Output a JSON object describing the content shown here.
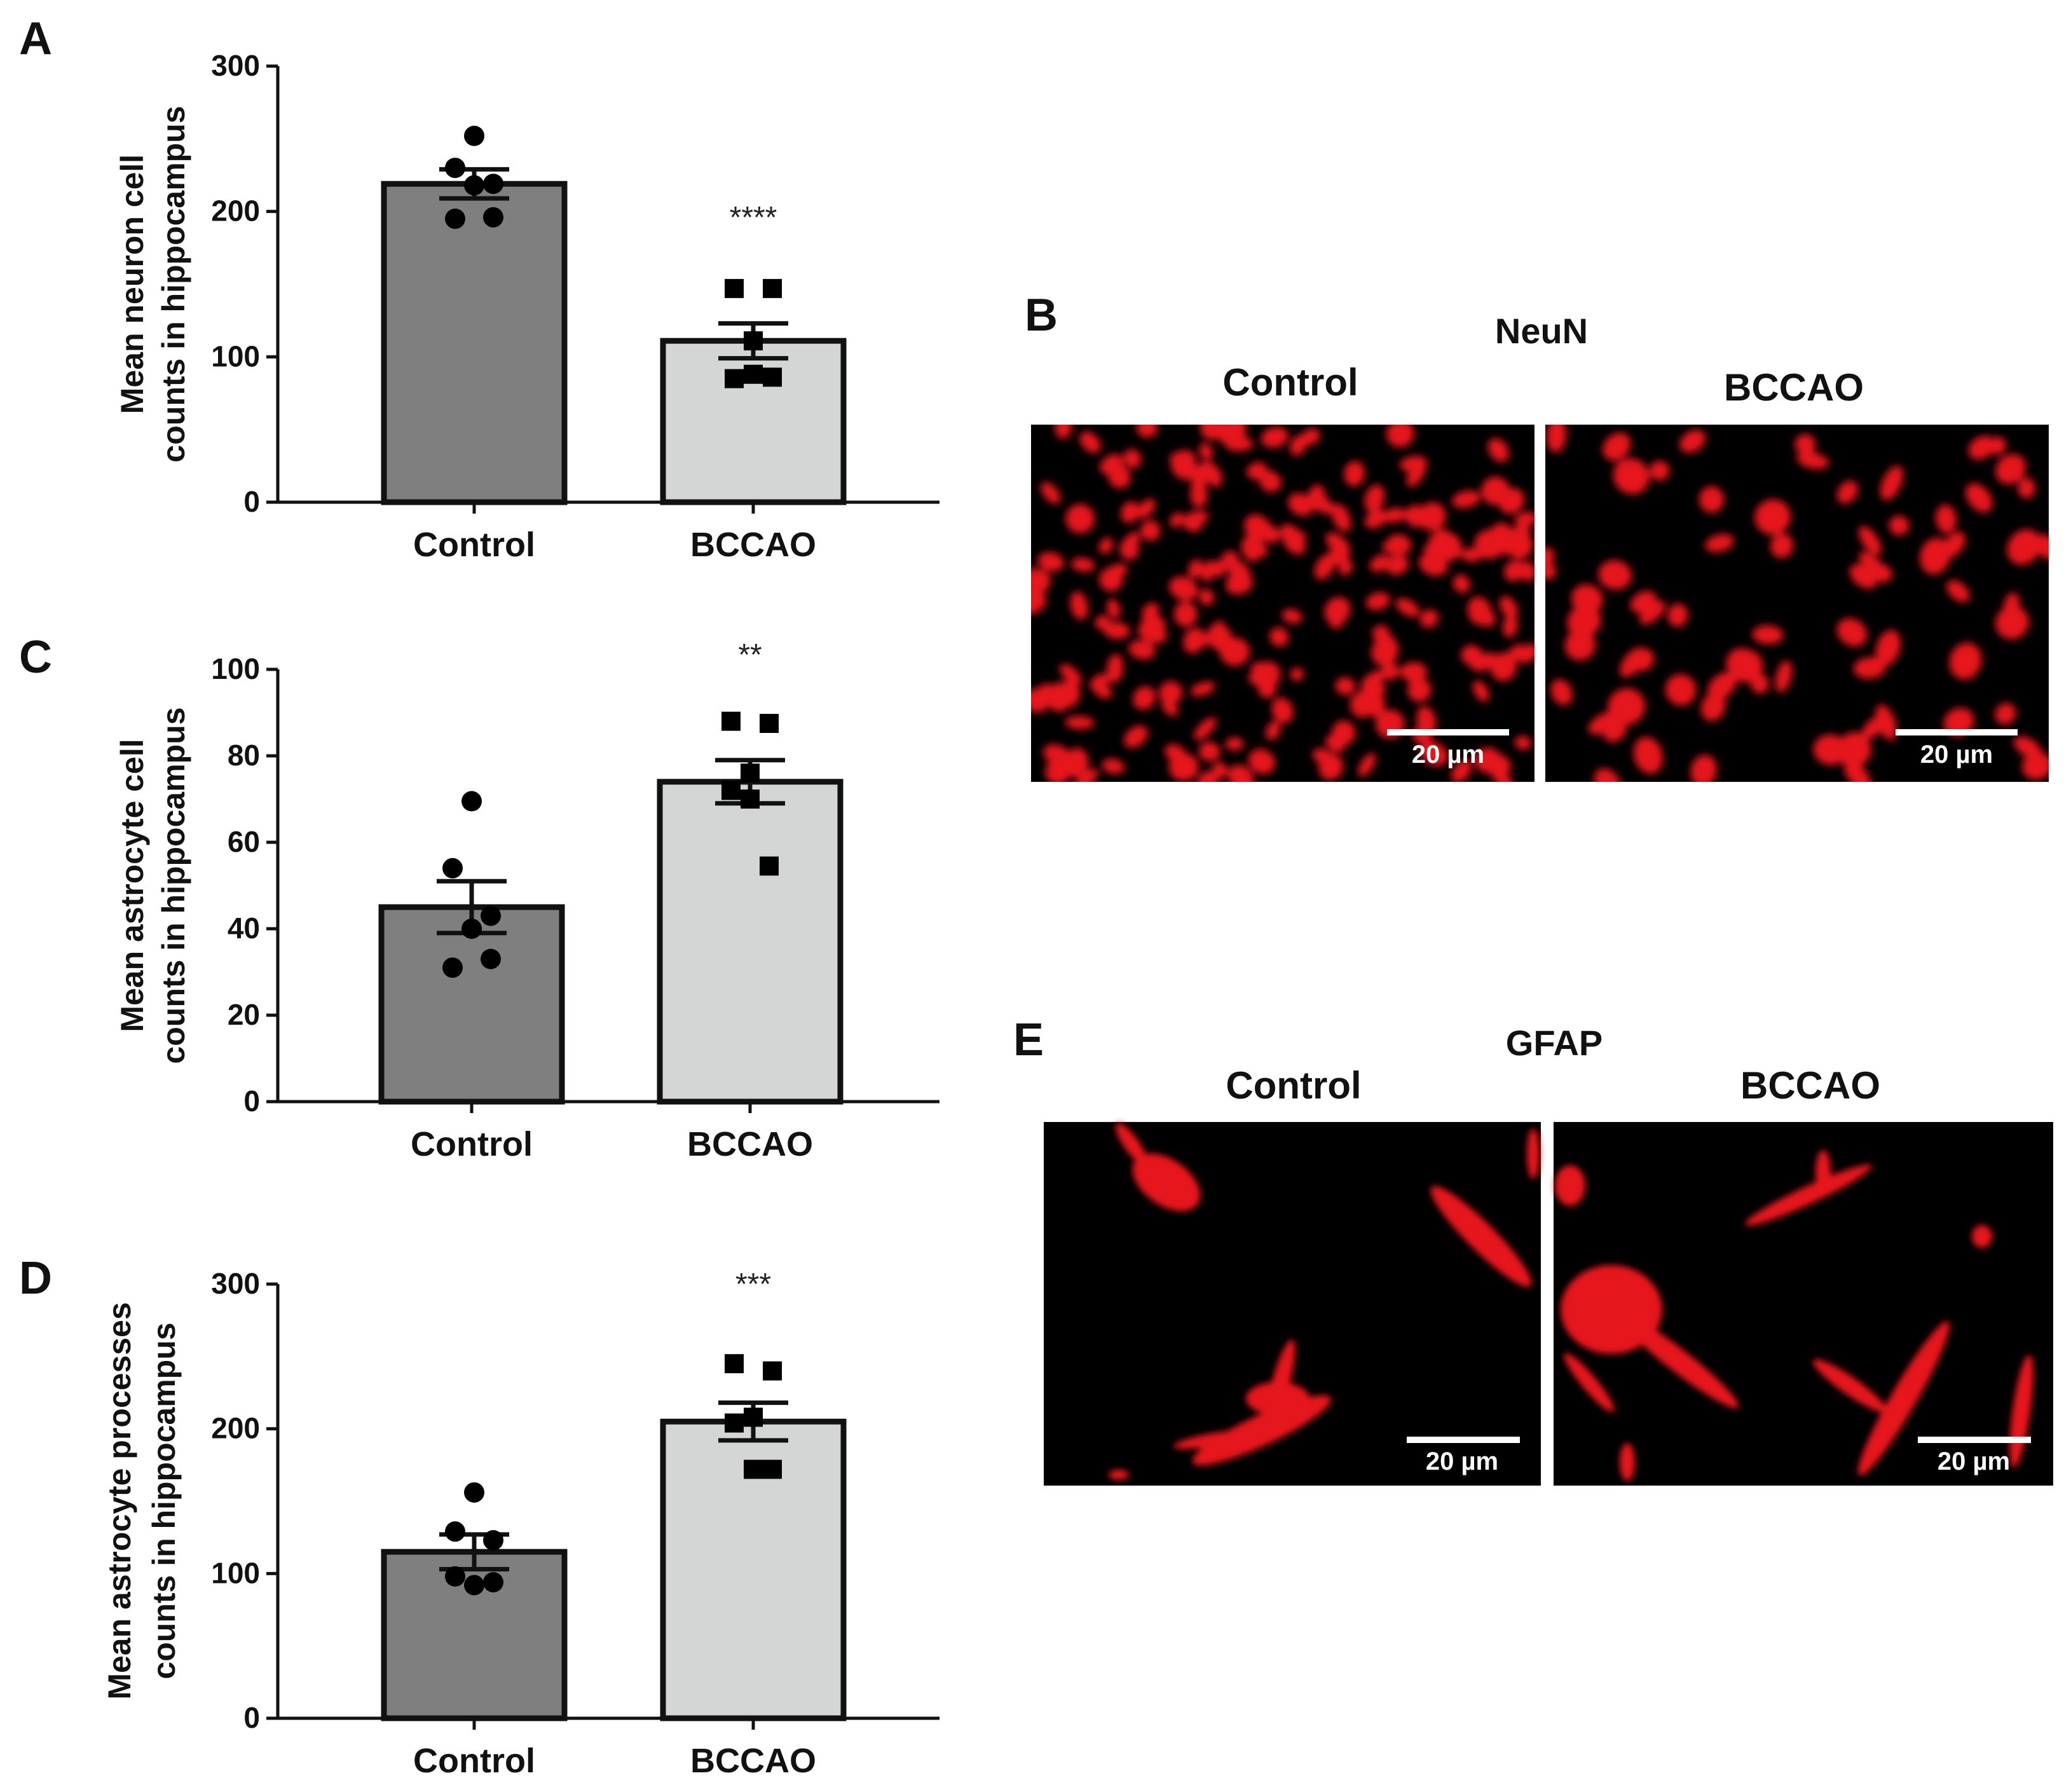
{
  "colors": {
    "axis": "#111111",
    "control_bar": "#7f7f7f",
    "bccao_bar": "#d4d5d5",
    "marker": "#000000",
    "micrograph_bg": "#000000",
    "stain": "#e5121c",
    "scale_bar": "#ffffff"
  },
  "chart_data": [
    {
      "panel": "A",
      "type": "bar",
      "ylabel_line1": "Mean neuron cell",
      "ylabel_line2": "counts in hippocampus",
      "categories": [
        "Control",
        "BCCAO"
      ],
      "values": [
        219,
        111
      ],
      "sem": [
        10,
        12
      ],
      "significance": "****",
      "points": [
        {
          "marker": "circle",
          "values": [
            252,
            230,
            219,
            218,
            195,
            196
          ]
        },
        {
          "marker": "square",
          "values": [
            147,
            147,
            111,
            85,
            88,
            86
          ]
        }
      ],
      "ylim": [
        0,
        300
      ],
      "yticks": [
        "0",
        "100",
        "200",
        "300"
      ]
    },
    {
      "panel": "C",
      "type": "bar",
      "ylabel_line1": "Mean astrocyte cell",
      "ylabel_line2": "counts in hippocampus",
      "categories": [
        "Control",
        "BCCAO"
      ],
      "values": [
        45,
        74
      ],
      "sem": [
        6,
        5
      ],
      "significance": "**",
      "points": [
        {
          "marker": "circle",
          "values": [
            69.5,
            54,
            43,
            40,
            31,
            33
          ]
        },
        {
          "marker": "square",
          "values": [
            88,
            87.5,
            76,
            72,
            70,
            54.5
          ]
        }
      ],
      "ylim": [
        0,
        100
      ],
      "yticks": [
        "0",
        "20",
        "40",
        "60",
        "80",
        "100"
      ]
    },
    {
      "panel": "D",
      "type": "bar",
      "ylabel_line1": "Mean astrocyte processes",
      "ylabel_line2": "counts in hippocampus",
      "categories": [
        "Control",
        "BCCAO"
      ],
      "values": [
        115,
        205
      ],
      "sem": [
        12,
        13
      ],
      "significance": "***",
      "points": [
        {
          "marker": "circle",
          "values": [
            156,
            129,
            123,
            92,
            98,
            94
          ]
        },
        {
          "marker": "square",
          "values": [
            245,
            240,
            208,
            204,
            172,
            172
          ]
        }
      ],
      "ylim": [
        0,
        300
      ],
      "yticks": [
        "0",
        "100",
        "200",
        "300"
      ]
    }
  ],
  "panels": {
    "A": "A",
    "B": "B",
    "C": "C",
    "D": "D",
    "E": "E"
  },
  "micrographs": {
    "neun": {
      "title": "NeuN",
      "left_label": "Control",
      "right_label": "BCCAO",
      "scale_label": "20 µm"
    },
    "gfap": {
      "title": "GFAP",
      "left_label": "Control",
      "right_label": "BCCAO",
      "scale_label": "20 µm"
    }
  }
}
